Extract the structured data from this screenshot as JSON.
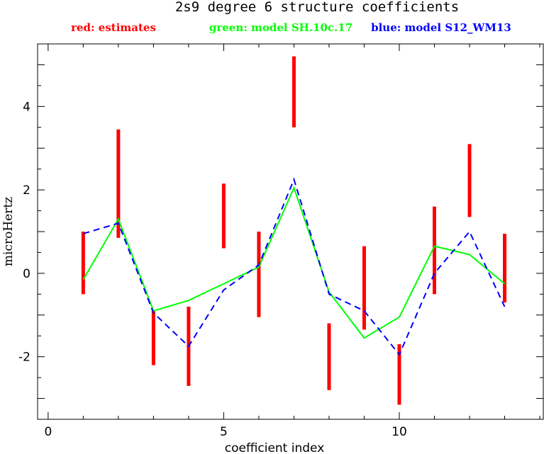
{
  "chart_data": {
    "type": "errorbar-line",
    "title": "2s9 degree 6 structure coefficients",
    "xlabel": "coefficient index",
    "ylabel": "microHertz",
    "xlim": [
      -0.3,
      14.1
    ],
    "ylim": [
      -3.5,
      5.5
    ],
    "x_ticks": [
      0,
      5,
      10
    ],
    "y_ticks": [
      -2,
      0,
      2,
      4
    ],
    "grid": false,
    "legend_placement": "top",
    "legend": [
      {
        "label": "red: estimates",
        "color": "#ff0000"
      },
      {
        "label": "green: model SH.10c.17",
        "color": "#00ff00"
      },
      {
        "label": "blue: model S12_WM13",
        "color": "#0000ff"
      }
    ],
    "estimates": {
      "color": "#ff0000",
      "x": [
        1,
        2,
        3,
        4,
        5,
        6,
        7,
        8,
        9,
        10,
        11,
        12,
        13
      ],
      "low": [
        -0.5,
        0.85,
        -2.2,
        -2.7,
        0.6,
        -1.05,
        3.5,
        -2.8,
        -1.35,
        -3.15,
        -0.5,
        1.35,
        -0.7
      ],
      "high": [
        1.0,
        3.45,
        -0.9,
        -0.8,
        2.15,
        1.0,
        5.2,
        -1.2,
        0.65,
        -1.7,
        1.6,
        3.1,
        0.95
      ]
    },
    "series": [
      {
        "label_ref": "green",
        "color": "#00ff00",
        "dash": false,
        "x": [
          1,
          2,
          3,
          4,
          5,
          6,
          7,
          8,
          9,
          10,
          11,
          12,
          13
        ],
        "y": [
          -0.15,
          1.3,
          -0.9,
          -0.65,
          -0.25,
          0.15,
          2.05,
          -0.45,
          -1.55,
          -1.05,
          0.65,
          0.45,
          -0.25
        ]
      },
      {
        "label_ref": "blue",
        "color": "#0000ff",
        "dash": true,
        "x": [
          1,
          2,
          3,
          4,
          5,
          6,
          7,
          8,
          9,
          10,
          11,
          12,
          13
        ],
        "y": [
          0.95,
          1.2,
          -0.95,
          -1.75,
          -0.4,
          0.2,
          2.25,
          -0.5,
          -0.9,
          -1.95,
          0.0,
          1.0,
          -0.8
        ]
      }
    ]
  }
}
